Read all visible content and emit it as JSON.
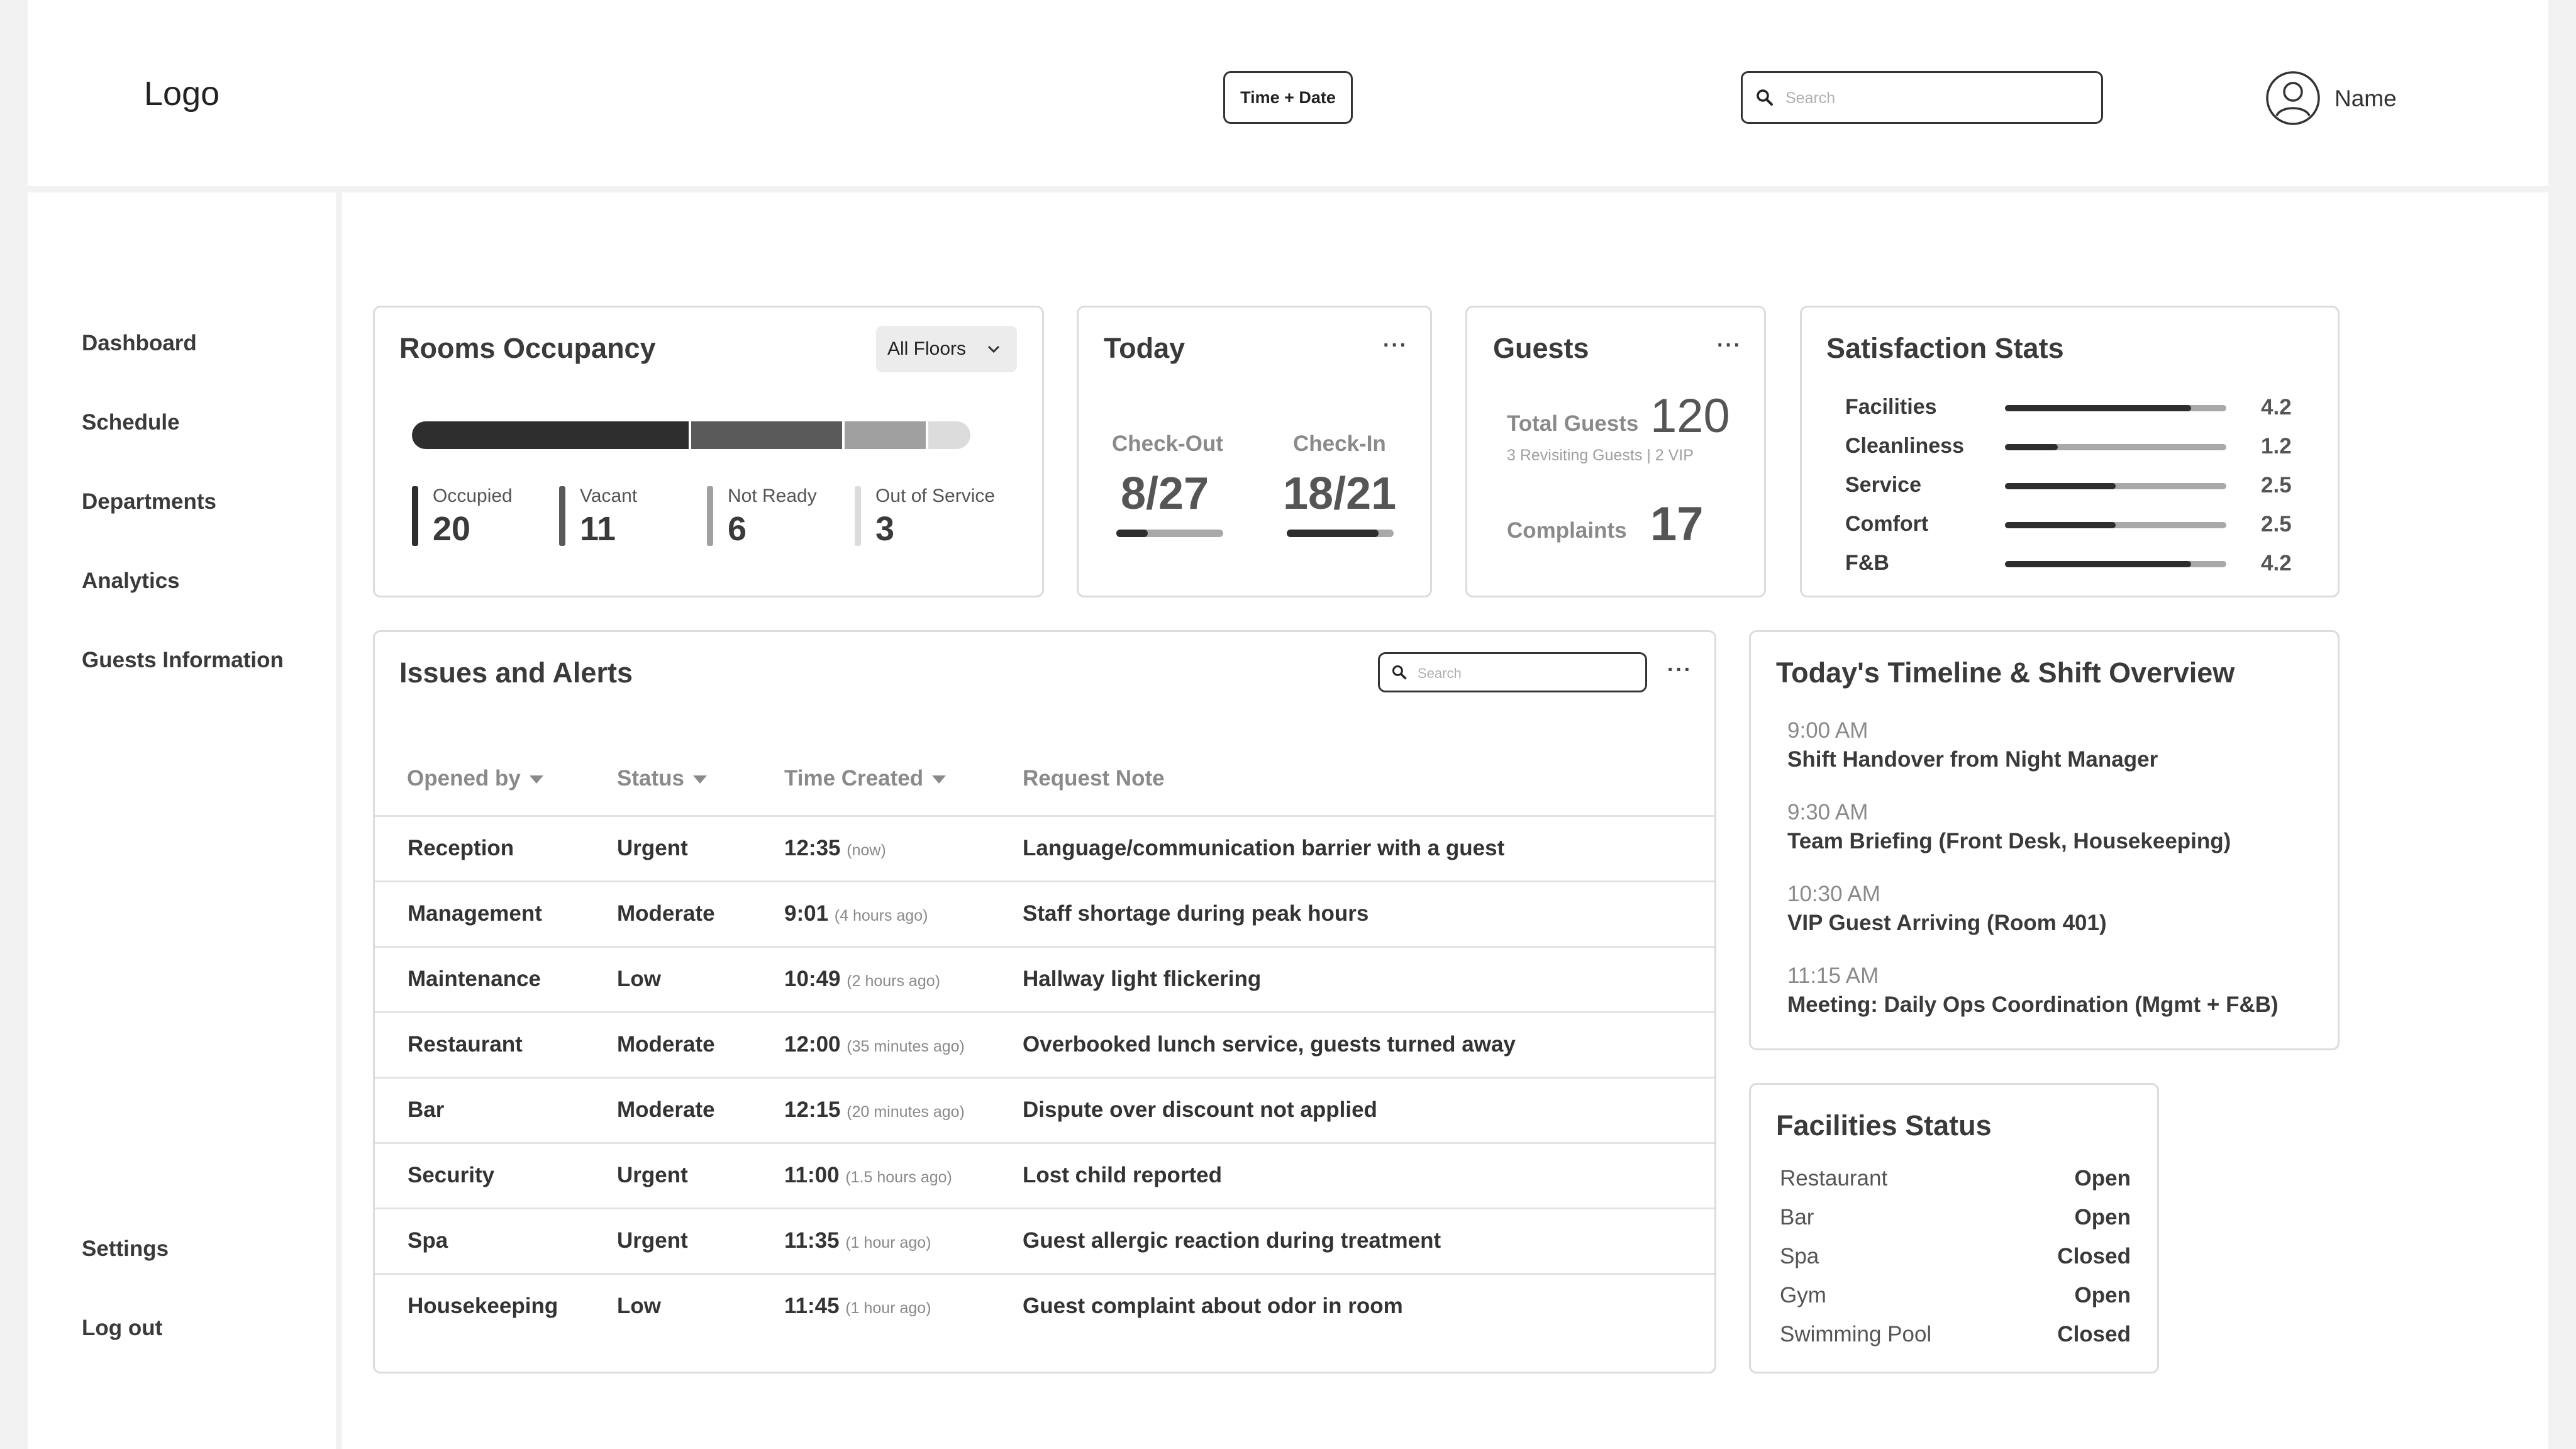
{
  "header": {
    "logo": "Logo",
    "time_date_button": "Time + Date",
    "search_placeholder": "Search",
    "user_name": "Name"
  },
  "sidebar": {
    "items": [
      {
        "label": "Dashboard"
      },
      {
        "label": "Schedule"
      },
      {
        "label": "Departments"
      },
      {
        "label": "Analytics"
      },
      {
        "label": "Guests Information"
      }
    ],
    "bottom_items": [
      {
        "label": "Settings"
      },
      {
        "label": "Log out"
      }
    ]
  },
  "rooms_occupancy": {
    "title": "Rooms Occupancy",
    "filter": "All Floors",
    "legend": [
      {
        "label": "Occupied",
        "value": "20"
      },
      {
        "label": "Vacant",
        "value": "11"
      },
      {
        "label": "Not Ready",
        "value": "6"
      },
      {
        "label": "Out of Service",
        "value": "3"
      }
    ],
    "colors": [
      "#2e2e2e",
      "#5a5a5a",
      "#a0a0a0",
      "#dcdcdc"
    ]
  },
  "today": {
    "title": "Today",
    "checkout": {
      "label": "Check-Out",
      "value": "8/27",
      "fraction": 0.296
    },
    "checkin": {
      "label": "Check-In",
      "value": "18/21",
      "fraction": 0.857
    }
  },
  "guests": {
    "title": "Guests",
    "total_label": "Total Guests",
    "total_value": "120",
    "sub": "3 Revisiting Guests | 2 VIP",
    "complaints_label": "Complaints",
    "complaints_value": "17"
  },
  "satisfaction": {
    "title": "Satisfaction Stats",
    "scale_max": 5,
    "items": [
      {
        "label": "Facilities",
        "value": 4.2,
        "display": "4.2"
      },
      {
        "label": "Cleanliness",
        "value": 1.2,
        "display": "1.2"
      },
      {
        "label": "Service",
        "value": 2.5,
        "display": "2.5"
      },
      {
        "label": "Comfort",
        "value": 2.5,
        "display": "2.5"
      },
      {
        "label": "F&B",
        "value": 4.2,
        "display": "4.2"
      }
    ]
  },
  "issues": {
    "title": "Issues and Alerts",
    "search_placeholder": "Search",
    "columns": [
      "Opened by",
      "Status",
      "Time Created",
      "Request Note"
    ],
    "rows": [
      {
        "opened_by": "Reception",
        "status": "Urgent",
        "time": "12:35",
        "ago": "(now)",
        "note": "Language/communication barrier with a guest"
      },
      {
        "opened_by": "Management",
        "status": "Moderate",
        "time": "9:01",
        "ago": "(4 hours ago)",
        "note": "Staff shortage during peak hours"
      },
      {
        "opened_by": "Maintenance",
        "status": "Low",
        "time": "10:49",
        "ago": "(2 hours ago)",
        "note": "Hallway light flickering"
      },
      {
        "opened_by": "Restaurant",
        "status": "Moderate",
        "time": "12:00",
        "ago": "(35 minutes ago)",
        "note": "Overbooked lunch service, guests turned away"
      },
      {
        "opened_by": "Bar",
        "status": "Moderate",
        "time": "12:15",
        "ago": "(20 minutes ago)",
        "note": "Dispute over discount not applied"
      },
      {
        "opened_by": "Security",
        "status": "Urgent",
        "time": "11:00",
        "ago": "(1.5 hours ago)",
        "note": "Lost child reported"
      },
      {
        "opened_by": "Spa",
        "status": "Urgent",
        "time": "11:35",
        "ago": "(1 hour ago)",
        "note": "Guest allergic reaction during treatment"
      },
      {
        "opened_by": "Housekeeping",
        "status": "Low",
        "time": "11:45",
        "ago": "(1 hour ago)",
        "note": "Guest complaint about odor in room"
      }
    ]
  },
  "timeline": {
    "title": "Today's Timeline & Shift Overview",
    "events": [
      {
        "time": "9:00 AM",
        "title": "Shift Handover from Night Manager"
      },
      {
        "time": "9:30 AM",
        "title": "Team Briefing (Front Desk, Housekeeping)"
      },
      {
        "time": "10:30 AM",
        "title": "VIP Guest Arriving (Room 401)"
      },
      {
        "time": "11:15 AM",
        "title": "Meeting: Daily Ops Coordination (Mgmt + F&B)"
      }
    ]
  },
  "facilities": {
    "title": "Facilities Status",
    "items": [
      {
        "name": "Restaurant",
        "status": "Open"
      },
      {
        "name": "Bar",
        "status": "Open"
      },
      {
        "name": "Spa",
        "status": "Closed"
      },
      {
        "name": "Gym",
        "status": "Open"
      },
      {
        "name": "Swimming Pool",
        "status": "Closed"
      }
    ]
  }
}
